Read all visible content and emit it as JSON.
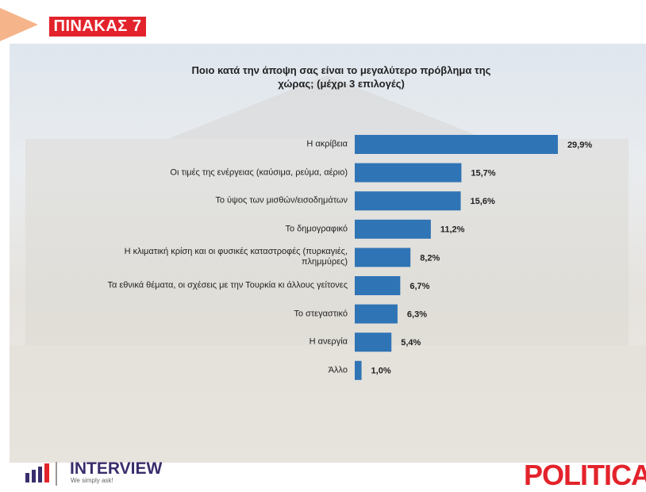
{
  "header": {
    "label": "ΠΙΝΑΚΑΣ 7"
  },
  "chart_data": {
    "type": "bar",
    "orientation": "horizontal",
    "title": "Ποιο κατά την άποψη σας είναι το μεγαλύτερο πρόβλημα της χώρας; (μέχρι 3 επιλογές)",
    "categories": [
      "Η ακρίβεια",
      "Οι τιμές της ενέργειας (καύσιμα, ρεύμα, αέριο)",
      "Το ύψος των μισθών/εισοδημάτων",
      "Το δημογραφικό",
      "Η κλιματική κρίση και οι φυσικές καταστροφές (πυρκαγιές, πλημμύρες)",
      "Τα εθνικά θέματα, οι σχέσεις με την Τουρκία κι άλλους γείτονες",
      "Το στεγαστικό",
      "Η ανεργία",
      "Άλλο"
    ],
    "values": [
      29.9,
      15.7,
      15.6,
      11.2,
      8.2,
      6.7,
      6.3,
      5.4,
      1.0
    ],
    "value_labels": [
      "29,9%",
      "15,7%",
      "15,6%",
      "11,2%",
      "8,2%",
      "6,7%",
      "6,3%",
      "5,4%",
      "1,0%"
    ],
    "color": "#2f74b5"
  },
  "footer": {
    "logo": "INTERVIEW",
    "tagline": "We simply ask!",
    "brand": "POLITICAL"
  }
}
